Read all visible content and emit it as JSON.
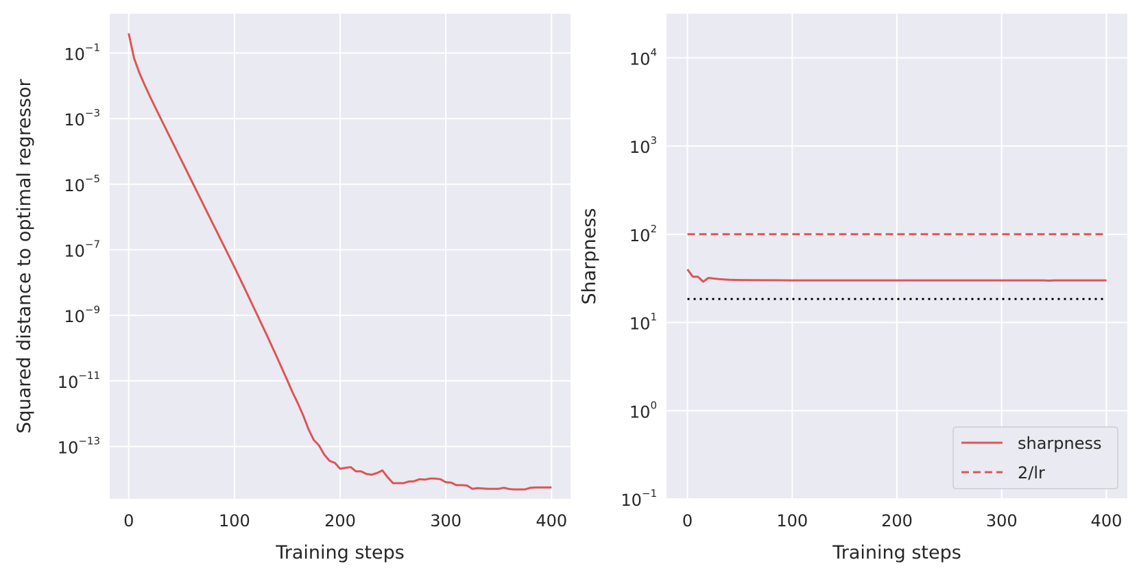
{
  "colors": {
    "plot_background": "#eaeaf2",
    "grid": "#ffffff",
    "series_red": "#dd5555",
    "reference_black": "#000000",
    "text": "#262626"
  },
  "chart_data": [
    {
      "type": "line",
      "title": "",
      "xlabel": "Training steps",
      "ylabel": "Squared distance to optimal regressor",
      "xlim": [
        -18,
        418
      ],
      "ylim_log10": [
        -14.6,
        0.2
      ],
      "yscale": "log",
      "grid": true,
      "x_ticks": [
        0,
        100,
        200,
        300,
        400
      ],
      "x_tick_labels": [
        "0",
        "100",
        "200",
        "300",
        "400"
      ],
      "y_ticks_log10": [
        -1,
        -3,
        -5,
        -7,
        -9,
        -11,
        -13
      ],
      "y_tick_labels": [
        {
          "base": "10",
          "exp": "−1"
        },
        {
          "base": "10",
          "exp": "−3"
        },
        {
          "base": "10",
          "exp": "−5"
        },
        {
          "base": "10",
          "exp": "−7"
        },
        {
          "base": "10",
          "exp": "−9"
        },
        {
          "base": "10",
          "exp": "−11"
        },
        {
          "base": "10",
          "exp": "−13"
        }
      ],
      "series": [
        {
          "style": "solid",
          "color": "#dd5555",
          "x": [
            0,
            5,
            10,
            15,
            20,
            30,
            40,
            50,
            60,
            70,
            80,
            90,
            100,
            110,
            120,
            130,
            140,
            145,
            150,
            155,
            160,
            165,
            170,
            175,
            180,
            185,
            190,
            195,
            200,
            205,
            210,
            215,
            220,
            225,
            230,
            235,
            240,
            245,
            250,
            255,
            260,
            265,
            270,
            275,
            280,
            285,
            290,
            295,
            300,
            305,
            310,
            315,
            320,
            325,
            330,
            335,
            340,
            345,
            350,
            355,
            360,
            365,
            370,
            375,
            380,
            385,
            390,
            395,
            400
          ],
          "y_log10": [
            -0.4,
            -1.15,
            -1.6,
            -1.97,
            -2.32,
            -2.98,
            -3.63,
            -4.28,
            -4.93,
            -5.58,
            -6.23,
            -6.88,
            -7.53,
            -8.2,
            -8.88,
            -9.56,
            -10.26,
            -10.62,
            -10.98,
            -11.35,
            -11.68,
            -12.05,
            -12.47,
            -12.8,
            -12.97,
            -13.25,
            -13.44,
            -13.5,
            -13.68,
            -13.65,
            -13.63,
            -13.76,
            -13.76,
            -13.84,
            -13.86,
            -13.81,
            -13.73,
            -13.94,
            -14.12,
            -14.12,
            -14.12,
            -14.07,
            -14.06,
            -14.0,
            -14.01,
            -13.98,
            -13.98,
            -14.0,
            -14.09,
            -14.1,
            -14.18,
            -14.18,
            -14.19,
            -14.29,
            -14.27,
            -14.28,
            -14.29,
            -14.29,
            -14.29,
            -14.26,
            -14.3,
            -14.31,
            -14.31,
            -14.31,
            -14.26,
            -14.25,
            -14.25,
            -14.25,
            -14.25
          ]
        }
      ]
    },
    {
      "type": "line",
      "title": "",
      "xlabel": "Training steps",
      "ylabel": "Sharpness",
      "xlim": [
        -20,
        420
      ],
      "ylim_log10": [
        -1,
        4.5
      ],
      "yscale": "log",
      "grid": true,
      "legend_position": "lower-right",
      "x_ticks": [
        0,
        100,
        200,
        300,
        400
      ],
      "x_tick_labels": [
        "0",
        "100",
        "200",
        "300",
        "400"
      ],
      "y_ticks_log10": [
        4,
        3,
        2,
        1,
        0,
        -1
      ],
      "y_tick_labels": [
        {
          "base": "10",
          "exp": "4"
        },
        {
          "base": "10",
          "exp": "3"
        },
        {
          "base": "10",
          "exp": "2"
        },
        {
          "base": "10",
          "exp": "1"
        },
        {
          "base": "10",
          "exp": "0"
        },
        {
          "base": "10",
          "exp": "−1"
        }
      ],
      "series": [
        {
          "name": "sharpness",
          "style": "solid",
          "color": "#dd5555",
          "x": [
            0,
            5,
            10,
            15,
            20,
            30,
            40,
            50,
            60,
            80,
            100,
            150,
            200,
            250,
            300,
            340,
            345,
            350,
            400
          ],
          "y": [
            40,
            33,
            33,
            29,
            32,
            31,
            30.5,
            30.3,
            30.2,
            30.1,
            30,
            30,
            30,
            30,
            30,
            30,
            29.8,
            30,
            30
          ]
        },
        {
          "name": "2/lr",
          "style": "dashed",
          "color": "#dd5555",
          "x": [
            0,
            400
          ],
          "y": [
            100,
            100
          ]
        },
        {
          "style": "dotted",
          "color": "#000000",
          "x": [
            0,
            400
          ],
          "y": [
            18.5,
            18.5
          ]
        }
      ]
    }
  ]
}
